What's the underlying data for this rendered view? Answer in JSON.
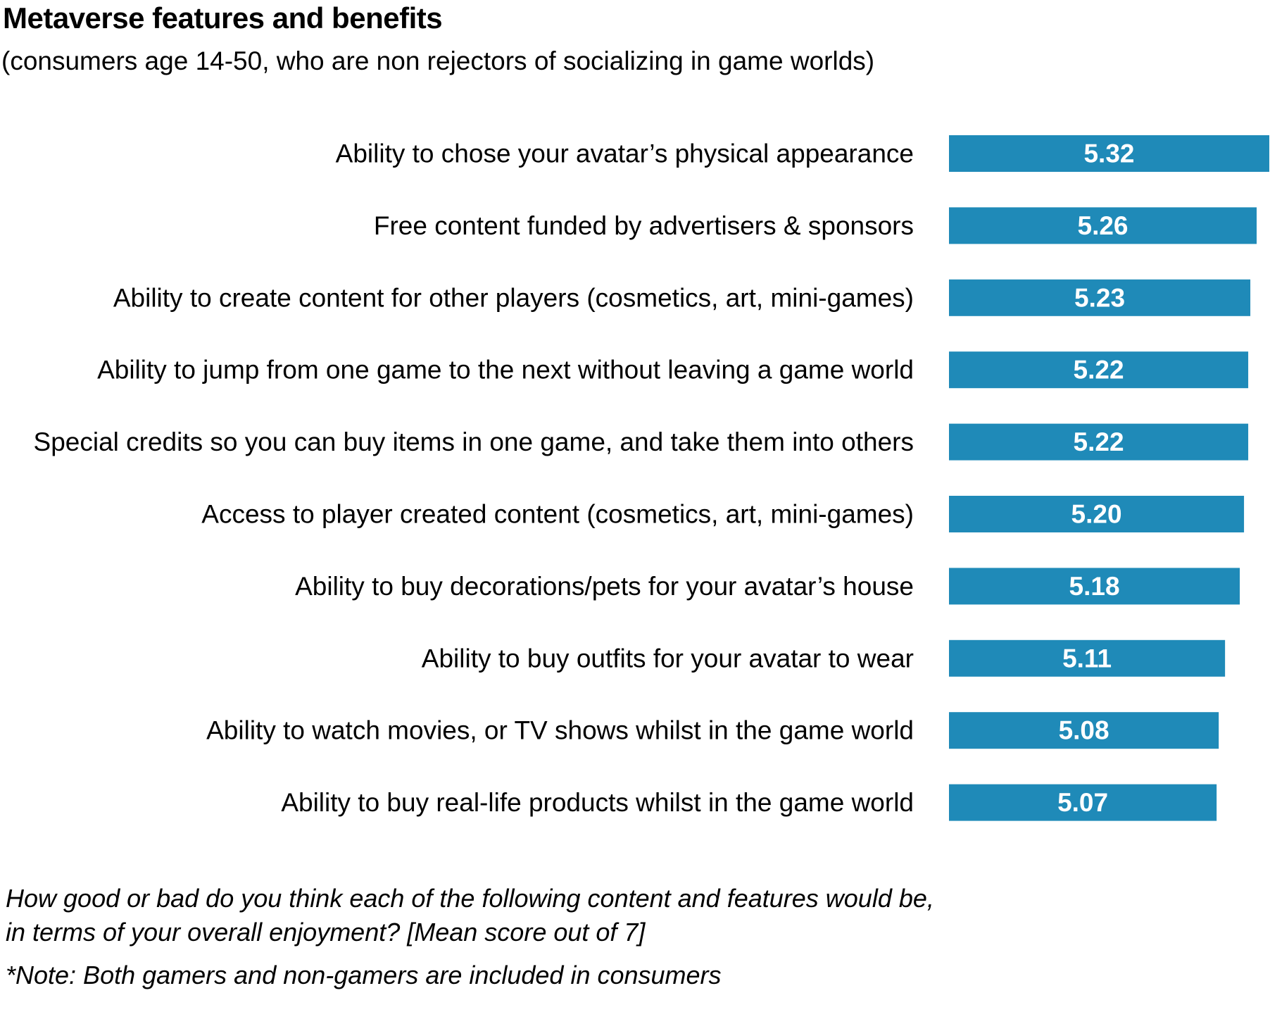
{
  "chart_data": {
    "type": "bar",
    "orientation": "horizontal",
    "title": "Metaverse features and benefits",
    "subtitle": "(consumers age 14-50, who are non rejectors of socializing in game worlds)",
    "categories": [
      "Ability to chose your avatar’s physical appearance",
      "Free content funded by advertisers & sponsors",
      "Ability to create content for other players (cosmetics, art, mini-games)",
      "Ability to jump from one game to the next without leaving a game world",
      "Special credits so you can buy items in one game, and take them into others",
      "Access to player created content (cosmetics, art, mini-games)",
      "Ability to buy decorations/pets for your avatar’s house",
      "Ability to buy outfits for your avatar to wear",
      "Ability to watch movies, or TV shows whilst in the game world",
      "Ability to buy real-life products whilst in the game world"
    ],
    "values": [
      5.32,
      5.26,
      5.23,
      5.22,
      5.22,
      5.2,
      5.18,
      5.11,
      5.08,
      5.07
    ],
    "value_labels": [
      "5.32",
      "5.26",
      "5.23",
      "5.22",
      "5.22",
      "5.20",
      "5.18",
      "5.11",
      "5.08",
      "5.07"
    ],
    "xlim": [
      3.8,
      5.32
    ],
    "grid": false,
    "color": "#1f8ab8",
    "value_label_color": "#ffffff"
  },
  "footnotes": {
    "question_line1": "How good or bad do you think each of the following content and features would be,",
    "question_line2": "in terms of your overall enjoyment? [Mean score out of 7]",
    "note": "*Note: Both gamers and non-gamers are included in consumers"
  }
}
